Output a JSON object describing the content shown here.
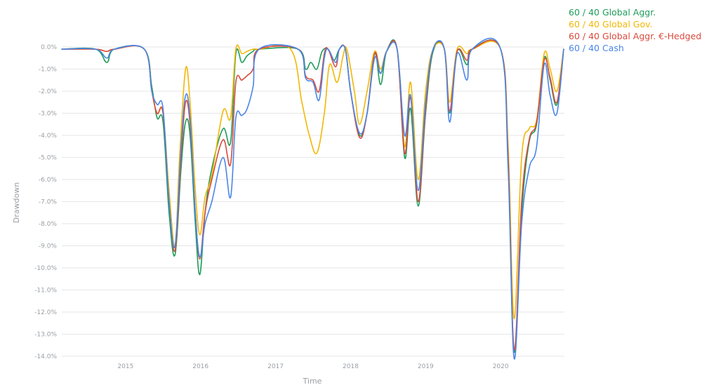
{
  "chart_data": {
    "type": "line",
    "xlabel": "Time",
    "ylabel": "Drawdown",
    "ylim": [
      -14,
      0
    ],
    "xlim": [
      2014.15,
      2020.85
    ],
    "x_ticks": [
      2015,
      2016,
      2017,
      2018,
      2019,
      2020
    ],
    "y_ticks": [
      0,
      -1,
      -2,
      -3,
      -4,
      -5,
      -6,
      -7,
      -8,
      -9,
      -10,
      -11,
      -12,
      -13,
      -14
    ],
    "y_tick_format": "percent_1dp",
    "grid": "horizontal",
    "legend_position": "top-right",
    "series": [
      {
        "name": "60 / 40 Global Aggr.",
        "color": "#1e9c5a",
        "points": [
          [
            2014.15,
            -0.1
          ],
          [
            2014.6,
            -0.1
          ],
          [
            2014.75,
            -0.7
          ],
          [
            2014.85,
            -0.1
          ],
          [
            2015.25,
            -0.1
          ],
          [
            2015.35,
            -1.8
          ],
          [
            2015.42,
            -3.2
          ],
          [
            2015.5,
            -3.4
          ],
          [
            2015.58,
            -7.5
          ],
          [
            2015.66,
            -9.4
          ],
          [
            2015.74,
            -5.5
          ],
          [
            2015.8,
            -3.4
          ],
          [
            2015.86,
            -4.0
          ],
          [
            2015.93,
            -8.0
          ],
          [
            2015.99,
            -10.3
          ],
          [
            2016.06,
            -7.5
          ],
          [
            2016.15,
            -5.5
          ],
          [
            2016.3,
            -3.7
          ],
          [
            2016.4,
            -4.3
          ],
          [
            2016.47,
            -0.3
          ],
          [
            2016.55,
            -0.7
          ],
          [
            2016.62,
            -0.4
          ],
          [
            2016.7,
            -0.2
          ],
          [
            2016.78,
            -0.1
          ],
          [
            2017.3,
            -0.1
          ],
          [
            2017.4,
            -1.0
          ],
          [
            2017.47,
            -0.7
          ],
          [
            2017.55,
            -1.0
          ],
          [
            2017.62,
            -0.2
          ],
          [
            2017.7,
            -0.1
          ],
          [
            2017.78,
            -0.6
          ],
          [
            2017.85,
            -0.1
          ],
          [
            2017.93,
            -0.1
          ],
          [
            2018.0,
            -2.0
          ],
          [
            2018.12,
            -4.0
          ],
          [
            2018.22,
            -3.0
          ],
          [
            2018.32,
            -0.3
          ],
          [
            2018.4,
            -1.7
          ],
          [
            2018.48,
            -0.2
          ],
          [
            2018.62,
            -0.1
          ],
          [
            2018.72,
            -5.0
          ],
          [
            2018.8,
            -2.8
          ],
          [
            2018.9,
            -7.2
          ],
          [
            2019.0,
            -3.0
          ],
          [
            2019.1,
            -0.2
          ],
          [
            2019.25,
            -0.1
          ],
          [
            2019.32,
            -3.0
          ],
          [
            2019.42,
            -0.2
          ],
          [
            2019.55,
            -0.8
          ],
          [
            2019.62,
            -0.1
          ],
          [
            2020.0,
            -0.1
          ],
          [
            2020.1,
            -5.0
          ],
          [
            2020.18,
            -13.8
          ],
          [
            2020.28,
            -7.5
          ],
          [
            2020.38,
            -4.3
          ],
          [
            2020.48,
            -3.5
          ],
          [
            2020.58,
            -0.5
          ],
          [
            2020.66,
            -1.5
          ],
          [
            2020.75,
            -2.6
          ],
          [
            2020.84,
            -0.1
          ]
        ]
      },
      {
        "name": "60 / 40 Global Gov.",
        "color": "#f2b705",
        "points": [
          [
            2014.15,
            -0.1
          ],
          [
            2014.6,
            -0.1
          ],
          [
            2014.75,
            -0.2
          ],
          [
            2014.85,
            -0.1
          ],
          [
            2015.25,
            -0.1
          ],
          [
            2015.35,
            -2.0
          ],
          [
            2015.42,
            -3.0
          ],
          [
            2015.5,
            -3.0
          ],
          [
            2015.58,
            -6.5
          ],
          [
            2015.66,
            -9.0
          ],
          [
            2015.72,
            -5.0
          ],
          [
            2015.8,
            -1.0
          ],
          [
            2015.86,
            -2.5
          ],
          [
            2015.93,
            -6.5
          ],
          [
            2015.99,
            -8.5
          ],
          [
            2016.06,
            -6.8
          ],
          [
            2016.15,
            -5.8
          ],
          [
            2016.3,
            -2.9
          ],
          [
            2016.4,
            -3.2
          ],
          [
            2016.47,
            -0.1
          ],
          [
            2016.55,
            -0.3
          ],
          [
            2016.62,
            -0.2
          ],
          [
            2016.7,
            -0.1
          ],
          [
            2016.78,
            -0.1
          ],
          [
            2017.2,
            -0.1
          ],
          [
            2017.35,
            -2.5
          ],
          [
            2017.45,
            -4.0
          ],
          [
            2017.55,
            -4.8
          ],
          [
            2017.65,
            -3.0
          ],
          [
            2017.72,
            -0.8
          ],
          [
            2017.82,
            -1.6
          ],
          [
            2017.9,
            -0.4
          ],
          [
            2017.95,
            -0.1
          ],
          [
            2018.05,
            -2.0
          ],
          [
            2018.12,
            -3.5
          ],
          [
            2018.22,
            -2.0
          ],
          [
            2018.32,
            -0.2
          ],
          [
            2018.4,
            -1.0
          ],
          [
            2018.48,
            -0.2
          ],
          [
            2018.62,
            -0.1
          ],
          [
            2018.72,
            -4.5
          ],
          [
            2018.8,
            -1.6
          ],
          [
            2018.9,
            -6.0
          ],
          [
            2019.0,
            -2.0
          ],
          [
            2019.1,
            -0.1
          ],
          [
            2019.25,
            -0.1
          ],
          [
            2019.32,
            -2.5
          ],
          [
            2019.42,
            -0.1
          ],
          [
            2019.55,
            -0.3
          ],
          [
            2019.62,
            -0.1
          ],
          [
            2020.0,
            -0.1
          ],
          [
            2020.1,
            -4.5
          ],
          [
            2020.18,
            -12.3
          ],
          [
            2020.28,
            -5.0
          ],
          [
            2020.38,
            -3.7
          ],
          [
            2020.48,
            -3.3
          ],
          [
            2020.58,
            -0.3
          ],
          [
            2020.66,
            -1.0
          ],
          [
            2020.75,
            -2.0
          ],
          [
            2020.84,
            -0.1
          ]
        ]
      },
      {
        "name": "60 / 40 Global Aggr. €-Hedged",
        "color": "#d94a3d",
        "points": [
          [
            2014.15,
            -0.1
          ],
          [
            2014.6,
            -0.1
          ],
          [
            2014.75,
            -0.2
          ],
          [
            2014.85,
            -0.1
          ],
          [
            2015.25,
            -0.1
          ],
          [
            2015.35,
            -2.0
          ],
          [
            2015.42,
            -3.0
          ],
          [
            2015.5,
            -3.0
          ],
          [
            2015.58,
            -7.0
          ],
          [
            2015.66,
            -9.2
          ],
          [
            2015.74,
            -5.0
          ],
          [
            2015.8,
            -2.5
          ],
          [
            2015.86,
            -3.5
          ],
          [
            2015.93,
            -7.5
          ],
          [
            2015.99,
            -9.6
          ],
          [
            2016.06,
            -7.5
          ],
          [
            2016.15,
            -6.0
          ],
          [
            2016.3,
            -4.2
          ],
          [
            2016.4,
            -5.3
          ],
          [
            2016.47,
            -1.6
          ],
          [
            2016.55,
            -1.5
          ],
          [
            2016.62,
            -1.3
          ],
          [
            2016.7,
            -1.0
          ],
          [
            2016.78,
            -0.1
          ],
          [
            2017.3,
            -0.1
          ],
          [
            2017.4,
            -1.3
          ],
          [
            2017.5,
            -1.5
          ],
          [
            2017.58,
            -2.0
          ],
          [
            2017.65,
            -0.3
          ],
          [
            2017.7,
            -0.1
          ],
          [
            2017.8,
            -0.9
          ],
          [
            2017.85,
            -0.1
          ],
          [
            2017.93,
            -0.1
          ],
          [
            2018.0,
            -2.0
          ],
          [
            2018.12,
            -4.1
          ],
          [
            2018.22,
            -3.0
          ],
          [
            2018.32,
            -0.3
          ],
          [
            2018.4,
            -1.2
          ],
          [
            2018.48,
            -0.2
          ],
          [
            2018.62,
            -0.1
          ],
          [
            2018.72,
            -4.8
          ],
          [
            2018.8,
            -2.3
          ],
          [
            2018.9,
            -7.0
          ],
          [
            2019.0,
            -2.8
          ],
          [
            2019.1,
            -0.1
          ],
          [
            2019.25,
            -0.1
          ],
          [
            2019.32,
            -2.9
          ],
          [
            2019.42,
            -0.2
          ],
          [
            2019.55,
            -0.6
          ],
          [
            2019.62,
            -0.1
          ],
          [
            2020.0,
            -0.1
          ],
          [
            2020.1,
            -5.0
          ],
          [
            2020.18,
            -13.7
          ],
          [
            2020.28,
            -7.0
          ],
          [
            2020.38,
            -4.2
          ],
          [
            2020.48,
            -3.4
          ],
          [
            2020.58,
            -0.6
          ],
          [
            2020.66,
            -1.4
          ],
          [
            2020.75,
            -2.5
          ],
          [
            2020.84,
            -0.1
          ]
        ]
      },
      {
        "name": "60 / 40 Cash",
        "color": "#4a86e8",
        "points": [
          [
            2014.15,
            -0.1
          ],
          [
            2014.6,
            -0.1
          ],
          [
            2014.75,
            -0.5
          ],
          [
            2014.85,
            -0.1
          ],
          [
            2015.25,
            -0.1
          ],
          [
            2015.35,
            -2.0
          ],
          [
            2015.42,
            -2.6
          ],
          [
            2015.5,
            -2.8
          ],
          [
            2015.58,
            -7.0
          ],
          [
            2015.66,
            -9.0
          ],
          [
            2015.74,
            -4.5
          ],
          [
            2015.8,
            -2.2
          ],
          [
            2015.86,
            -3.2
          ],
          [
            2015.93,
            -7.5
          ],
          [
            2015.99,
            -9.5
          ],
          [
            2016.06,
            -8.0
          ],
          [
            2016.15,
            -7.0
          ],
          [
            2016.3,
            -5.0
          ],
          [
            2016.4,
            -6.8
          ],
          [
            2016.47,
            -3.2
          ],
          [
            2016.55,
            -3.1
          ],
          [
            2016.62,
            -2.8
          ],
          [
            2016.7,
            -1.8
          ],
          [
            2016.78,
            -0.1
          ],
          [
            2017.3,
            -0.1
          ],
          [
            2017.4,
            -1.4
          ],
          [
            2017.5,
            -1.6
          ],
          [
            2017.58,
            -2.4
          ],
          [
            2017.65,
            -0.5
          ],
          [
            2017.7,
            -0.1
          ],
          [
            2017.8,
            -0.7
          ],
          [
            2017.85,
            -0.1
          ],
          [
            2017.93,
            -0.1
          ],
          [
            2018.0,
            -2.0
          ],
          [
            2018.12,
            -3.9
          ],
          [
            2018.22,
            -3.0
          ],
          [
            2018.32,
            -0.5
          ],
          [
            2018.4,
            -1.2
          ],
          [
            2018.48,
            -0.2
          ],
          [
            2018.62,
            -0.1
          ],
          [
            2018.72,
            -4.0
          ],
          [
            2018.8,
            -2.2
          ],
          [
            2018.9,
            -6.5
          ],
          [
            2019.0,
            -2.5
          ],
          [
            2019.1,
            -0.1
          ],
          [
            2019.25,
            -0.1
          ],
          [
            2019.32,
            -3.4
          ],
          [
            2019.42,
            -0.3
          ],
          [
            2019.55,
            -1.5
          ],
          [
            2019.62,
            -0.1
          ],
          [
            2020.0,
            -0.1
          ],
          [
            2020.1,
            -5.5
          ],
          [
            2020.18,
            -14.1
          ],
          [
            2020.28,
            -8.0
          ],
          [
            2020.38,
            -5.5
          ],
          [
            2020.48,
            -4.5
          ],
          [
            2020.58,
            -0.8
          ],
          [
            2020.66,
            -2.2
          ],
          [
            2020.75,
            -3.0
          ],
          [
            2020.84,
            -0.1
          ]
        ]
      }
    ]
  }
}
